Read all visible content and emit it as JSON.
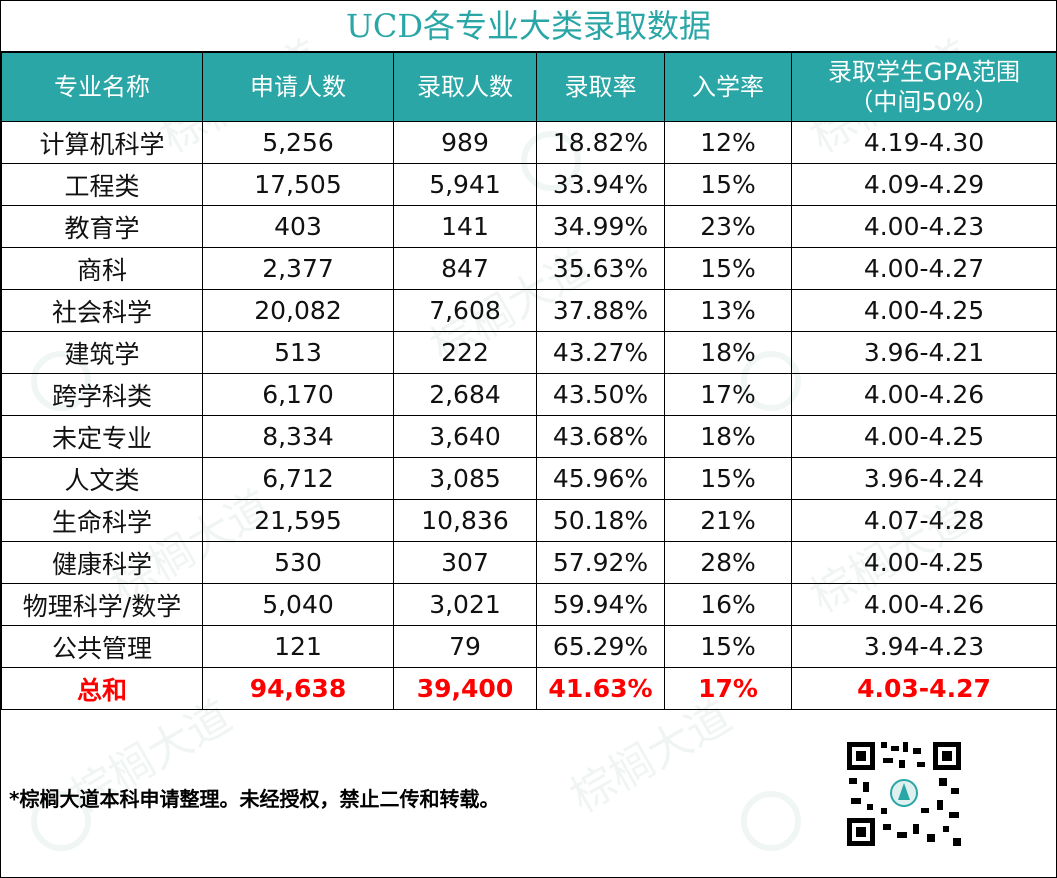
{
  "title": "UCD各专业大类录取数据",
  "headers": [
    "专业名称",
    "申请人数",
    "录取人数",
    "录取率",
    "入学率",
    "录取学生GPA范围",
    "（中间50%）"
  ],
  "rows": [
    [
      "计算机科学",
      "5,256",
      "989",
      "18.82%",
      "12%",
      "4.19-4.30"
    ],
    [
      "工程类",
      "17,505",
      "5,941",
      "33.94%",
      "15%",
      "4.09-4.29"
    ],
    [
      "教育学",
      "403",
      "141",
      "34.99%",
      "23%",
      "4.00-4.23"
    ],
    [
      "商科",
      "2,377",
      "847",
      "35.63%",
      "15%",
      "4.00-4.27"
    ],
    [
      "社会科学",
      "20,082",
      "7,608",
      "37.88%",
      "13%",
      "4.00-4.25"
    ],
    [
      "建筑学",
      "513",
      "222",
      "43.27%",
      "18%",
      "3.96-4.21"
    ],
    [
      "跨学科类",
      "6,170",
      "2,684",
      "43.50%",
      "17%",
      "4.00-4.26"
    ],
    [
      "未定专业",
      "8,334",
      "3,640",
      "43.68%",
      "18%",
      "4.00-4.25"
    ],
    [
      "人文类",
      "6,712",
      "3,085",
      "45.96%",
      "15%",
      "3.96-4.24"
    ],
    [
      "生命科学",
      "21,595",
      "10,836",
      "50.18%",
      "21%",
      "4.07-4.28"
    ],
    [
      "健康科学",
      "530",
      "307",
      "57.92%",
      "28%",
      "4.00-4.25"
    ],
    [
      "物理科学/数学",
      "5,040",
      "3,021",
      "59.94%",
      "16%",
      "4.00-4.26"
    ],
    [
      "公共管理",
      "121",
      "79",
      "65.29%",
      "15%",
      "3.94-4.23"
    ]
  ],
  "total": [
    "总和",
    "94,638",
    "39,400",
    "41.63%",
    "17%",
    "4.03-4.27"
  ],
  "note": "*棕榈大道本科申请整理。未经授权，禁止二传和转载。",
  "watermark": "棕榈大道",
  "colors": {
    "header_bg": "#2aa6a6",
    "title": "#2aa6a6",
    "total": "#ff0000"
  }
}
